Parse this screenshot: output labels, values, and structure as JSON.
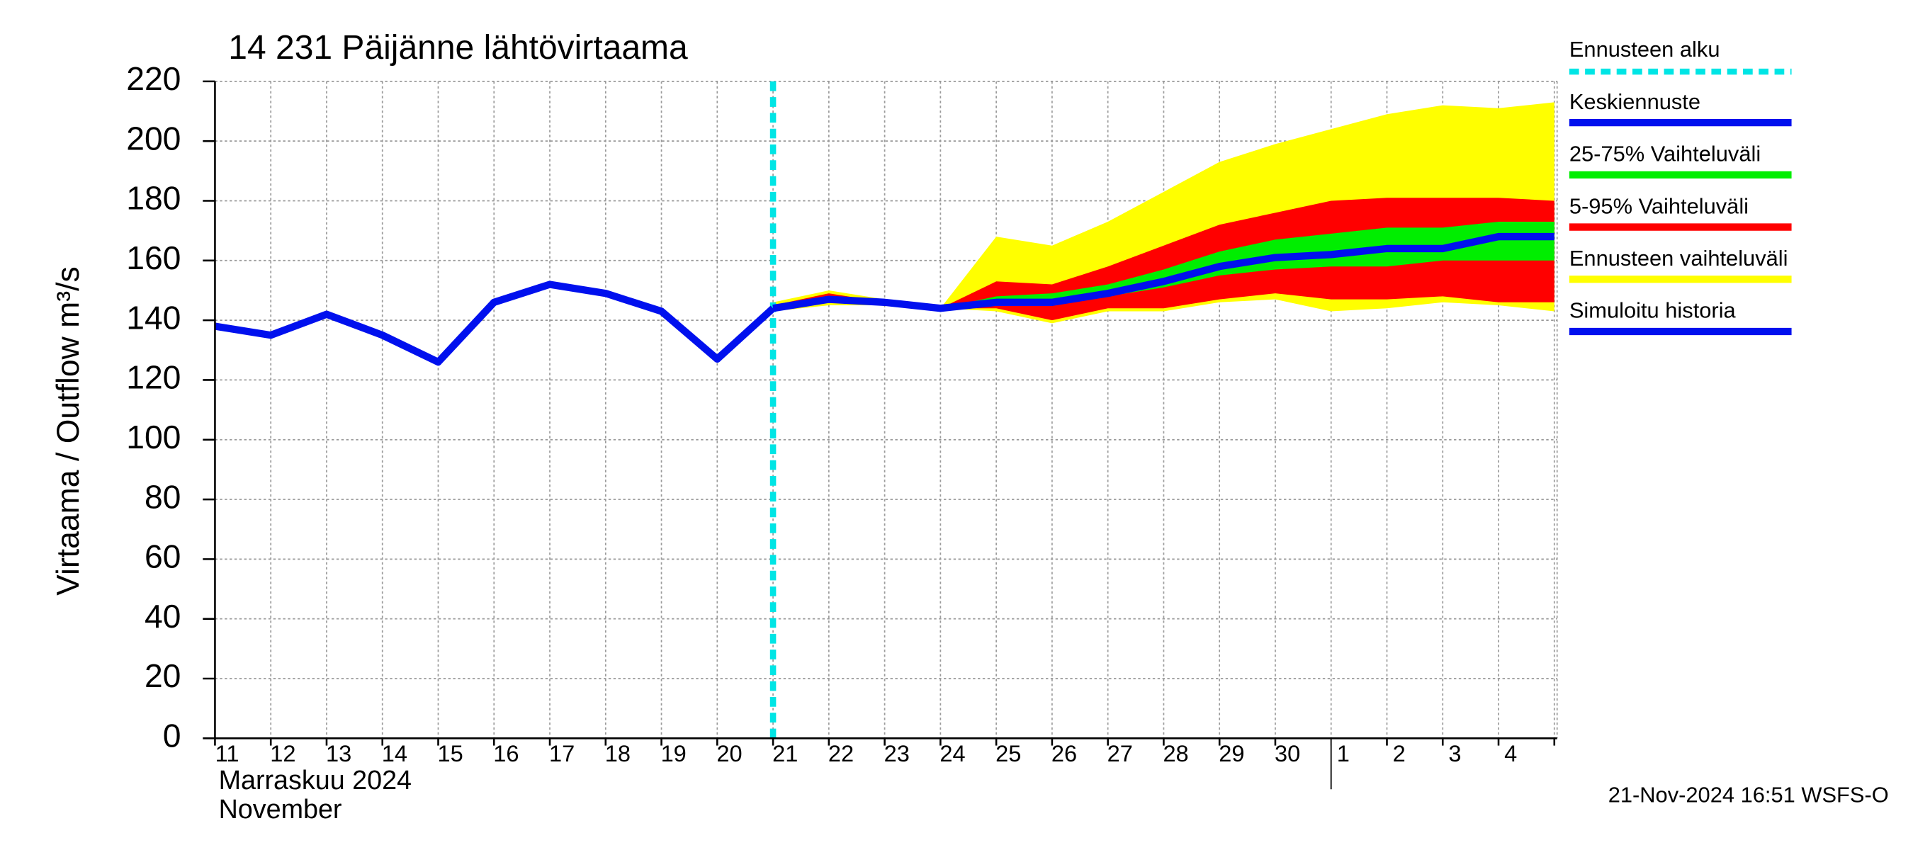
{
  "chart_data": {
    "type": "line",
    "title": "14 231 Päijänne lähtövirtaama",
    "ylabel": "Virtaama / Outflow    m³/s",
    "month_labels": [
      "Marraskuu 2024",
      "November"
    ],
    "timestamp": "21-Nov-2024 16:51 WSFS-O",
    "categories": [
      "11",
      "12",
      "13",
      "14",
      "15",
      "16",
      "17",
      "18",
      "19",
      "20",
      "21",
      "22",
      "23",
      "24",
      "25",
      "26",
      "27",
      "28",
      "29",
      "30",
      "1",
      "2",
      "3",
      "4",
      null
    ],
    "xlim": [
      0,
      24.05
    ],
    "month_break": 20,
    "forecast_start": 10,
    "forecast_start_name": "Ennusteen alku",
    "forecast_start_color": "#00e5e5",
    "ylim": [
      0,
      220
    ],
    "yticks": [
      0,
      20,
      40,
      60,
      80,
      100,
      120,
      140,
      160,
      180,
      200,
      220
    ],
    "grid": true,
    "series": [
      {
        "name": "Keskiennuste",
        "color": "#0010ee",
        "values": [
          null,
          null,
          null,
          null,
          null,
          null,
          null,
          null,
          null,
          null,
          144,
          147,
          146,
          144,
          146,
          146,
          149,
          153,
          158,
          161,
          162,
          164,
          164,
          168,
          168
        ]
      },
      {
        "name": "25-75% Vaihteluväli",
        "color": "#00ee00",
        "low": [
          null,
          null,
          null,
          null,
          null,
          null,
          null,
          null,
          null,
          null,
          144,
          147,
          146,
          144,
          146,
          145,
          148,
          151,
          155,
          157,
          158,
          158,
          160,
          160,
          160
        ],
        "high": [
          null,
          null,
          null,
          null,
          null,
          null,
          null,
          null,
          null,
          null,
          144,
          148,
          146,
          144,
          148,
          149,
          152,
          157,
          163,
          167,
          169,
          171,
          171,
          173,
          173
        ]
      },
      {
        "name": "5-95% Vaihteluväli",
        "color": "#ff0000",
        "low": [
          null,
          null,
          null,
          null,
          null,
          null,
          null,
          null,
          null,
          null,
          144,
          147,
          146,
          144,
          144,
          140,
          144,
          144,
          147,
          149,
          147,
          147,
          148,
          146,
          146
        ],
        "high": [
          null,
          null,
          null,
          null,
          null,
          null,
          null,
          null,
          null,
          null,
          145,
          149,
          146,
          144,
          153,
          152,
          158,
          165,
          172,
          176,
          180,
          181,
          181,
          181,
          180
        ]
      },
      {
        "name": "Ennusteen vaihteluväli",
        "color": "#ffff00",
        "low": [
          null,
          null,
          null,
          null,
          null,
          null,
          null,
          null,
          null,
          null,
          143,
          145,
          145,
          144,
          143,
          139,
          143,
          143,
          146,
          147,
          143,
          144,
          146,
          145,
          143
        ],
        "high": [
          null,
          null,
          null,
          null,
          null,
          null,
          null,
          null,
          null,
          null,
          146,
          150,
          147,
          144,
          168,
          165,
          173,
          183,
          193,
          199,
          204,
          209,
          212,
          211,
          213
        ]
      },
      {
        "name": "Simuloitu historia",
        "color": "#0010ee",
        "values": [
          138,
          135,
          142,
          135,
          126,
          146,
          152,
          149,
          143,
          127,
          144,
          null,
          null,
          null,
          null,
          null,
          null,
          null,
          null,
          null,
          null,
          null,
          null,
          null,
          null
        ]
      }
    ]
  }
}
